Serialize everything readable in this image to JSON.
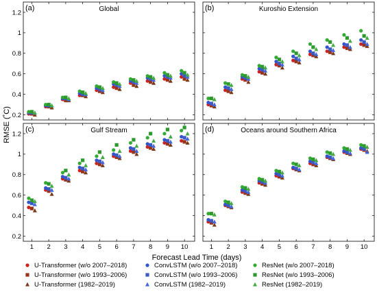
{
  "chart_data": [
    {
      "type": "scatter",
      "letter": "(a)",
      "title": "Global",
      "x": [
        1,
        2,
        3,
        4,
        5,
        6,
        7,
        8,
        9,
        10
      ],
      "xlim": [
        0.5,
        10.6
      ],
      "ylim": [
        0.15,
        1.3
      ],
      "yticks": [
        0.2,
        0.4,
        0.6,
        0.8,
        1.0,
        1.2
      ],
      "ytick_labels": [
        "0.2",
        "0.4",
        "0.6",
        "0.8",
        "1",
        "1.2"
      ],
      "series": [
        {
          "name": "U-Transformer (w/o 2007–2018)",
          "values": [
            0.21,
            0.28,
            0.35,
            0.39,
            0.44,
            0.47,
            0.51,
            0.53,
            0.55,
            0.57
          ]
        },
        {
          "name": "U-Transformer (w/o 1993–2006)",
          "values": [
            0.21,
            0.28,
            0.34,
            0.39,
            0.43,
            0.46,
            0.49,
            0.52,
            0.54,
            0.55
          ]
        },
        {
          "name": "U-Transformer (1982–2019)",
          "values": [
            0.2,
            0.27,
            0.34,
            0.38,
            0.42,
            0.45,
            0.48,
            0.51,
            0.53,
            0.54
          ]
        },
        {
          "name": "ConvLSTM (w/o 2007–2018)",
          "values": [
            0.22,
            0.29,
            0.36,
            0.41,
            0.46,
            0.5,
            0.53,
            0.56,
            0.58,
            0.6
          ]
        },
        {
          "name": "ConvLSTM (w/o 1993–2006)",
          "values": [
            0.22,
            0.29,
            0.36,
            0.4,
            0.45,
            0.49,
            0.52,
            0.55,
            0.57,
            0.58
          ]
        },
        {
          "name": "ConvLSTM (1982–2019)",
          "values": [
            0.22,
            0.29,
            0.35,
            0.4,
            0.44,
            0.48,
            0.51,
            0.54,
            0.56,
            0.57
          ]
        },
        {
          "name": "ResNet (w/o 2007–2018)",
          "values": [
            0.23,
            0.3,
            0.37,
            0.43,
            0.48,
            0.52,
            0.55,
            0.58,
            0.61,
            0.63
          ]
        },
        {
          "name": "ResNet (w/o 1993–2006)",
          "values": [
            0.23,
            0.3,
            0.37,
            0.42,
            0.47,
            0.51,
            0.54,
            0.57,
            0.59,
            0.61
          ]
        },
        {
          "name": "ResNet (1982–2019)",
          "values": [
            0.22,
            0.29,
            0.36,
            0.41,
            0.46,
            0.5,
            0.53,
            0.56,
            0.58,
            0.59
          ]
        }
      ]
    },
    {
      "type": "scatter",
      "letter": "(b)",
      "title": "Kuroshio Extension",
      "x": [
        1,
        2,
        3,
        4,
        5,
        6,
        7,
        8,
        9,
        10
      ],
      "xlim": [
        0.5,
        10.6
      ],
      "ylim": [
        0.15,
        1.3
      ],
      "yticks": [
        0.2,
        0.4,
        0.6,
        0.8,
        1.0,
        1.2
      ],
      "ytick_labels": [
        "0.2",
        "0.4",
        "0.6",
        "0.8",
        "1",
        "1.2"
      ],
      "series": [
        {
          "name": "U-Transformer (w/o 2007–2018)",
          "values": [
            0.3,
            0.44,
            0.55,
            0.62,
            0.69,
            0.73,
            0.79,
            0.82,
            0.86,
            0.89
          ]
        },
        {
          "name": "U-Transformer (w/o 1993–2006)",
          "values": [
            0.29,
            0.43,
            0.54,
            0.61,
            0.68,
            0.72,
            0.78,
            0.81,
            0.85,
            0.88
          ]
        },
        {
          "name": "U-Transformer (1982–2019)",
          "values": [
            0.28,
            0.42,
            0.52,
            0.6,
            0.66,
            0.71,
            0.77,
            0.8,
            0.84,
            0.87
          ]
        },
        {
          "name": "ConvLSTM (w/o 2007–2018)",
          "values": [
            0.32,
            0.47,
            0.57,
            0.65,
            0.72,
            0.77,
            0.82,
            0.86,
            0.89,
            0.93
          ]
        },
        {
          "name": "ConvLSTM (w/o 1993–2006)",
          "values": [
            0.31,
            0.46,
            0.56,
            0.64,
            0.7,
            0.75,
            0.8,
            0.84,
            0.88,
            0.91
          ]
        },
        {
          "name": "ConvLSTM (1982–2019)",
          "values": [
            0.3,
            0.45,
            0.55,
            0.63,
            0.69,
            0.74,
            0.79,
            0.83,
            0.86,
            0.89
          ]
        },
        {
          "name": "ResNet (w/o 2007–2018)",
          "values": [
            0.36,
            0.51,
            0.59,
            0.68,
            0.76,
            0.82,
            0.89,
            0.93,
            0.98,
            1.02
          ]
        },
        {
          "name": "ResNet (w/o 1993–2006)",
          "values": [
            0.36,
            0.5,
            0.58,
            0.67,
            0.74,
            0.8,
            0.86,
            0.91,
            0.95,
            0.97
          ]
        },
        {
          "name": "ResNet (1982–2019)",
          "values": [
            0.35,
            0.49,
            0.57,
            0.66,
            0.72,
            0.78,
            0.84,
            0.88,
            0.92,
            0.95
          ]
        }
      ]
    },
    {
      "type": "scatter",
      "letter": "(c)",
      "title": "Gulf Stream",
      "x": [
        1,
        2,
        3,
        4,
        5,
        6,
        7,
        8,
        9,
        10
      ],
      "xlim": [
        0.5,
        10.6
      ],
      "ylim": [
        0.15,
        1.3
      ],
      "yticks": [
        0.2,
        0.4,
        0.6,
        0.8,
        1.0,
        1.2
      ],
      "ytick_labels": [
        "0.2",
        "0.4",
        "0.6",
        "0.8",
        "1",
        "1.2"
      ],
      "series": [
        {
          "name": "U-Transformer (w/o 2007–2018)",
          "values": [
            0.48,
            0.65,
            0.76,
            0.84,
            0.91,
            0.98,
            1.03,
            1.07,
            1.11,
            1.13
          ]
        },
        {
          "name": "U-Transformer (w/o 1993–2006)",
          "values": [
            0.47,
            0.64,
            0.75,
            0.83,
            0.9,
            0.97,
            1.02,
            1.06,
            1.1,
            1.12
          ]
        },
        {
          "name": "U-Transformer (1982–2019)",
          "values": [
            0.45,
            0.61,
            0.74,
            0.82,
            0.89,
            0.96,
            1.0,
            1.05,
            1.09,
            1.11
          ]
        },
        {
          "name": "ConvLSTM (w/o 2007–2018)",
          "values": [
            0.53,
            0.67,
            0.78,
            0.87,
            0.94,
            1.0,
            1.06,
            1.1,
            1.14,
            1.17
          ]
        },
        {
          "name": "ConvLSTM (w/o 1993–2006)",
          "values": [
            0.52,
            0.66,
            0.77,
            0.86,
            0.93,
            0.99,
            1.05,
            1.09,
            1.13,
            1.16
          ]
        },
        {
          "name": "ConvLSTM (1982–2019)",
          "values": [
            0.51,
            0.65,
            0.76,
            0.85,
            0.92,
            0.98,
            1.03,
            1.08,
            1.12,
            1.15
          ]
        },
        {
          "name": "ResNet (w/o 2007–2018)",
          "values": [
            0.57,
            0.72,
            0.82,
            0.91,
            0.98,
            1.04,
            1.11,
            1.16,
            1.2,
            1.23
          ]
        },
        {
          "name": "ResNet (w/o 1993–2006)",
          "values": [
            0.55,
            0.71,
            0.84,
            0.94,
            1.02,
            1.09,
            1.14,
            1.2,
            1.24,
            1.26
          ]
        },
        {
          "name": "ResNet (1982–2019)",
          "values": [
            0.54,
            0.69,
            0.8,
            0.89,
            0.97,
            1.03,
            1.08,
            1.13,
            1.17,
            1.2
          ]
        }
      ]
    },
    {
      "type": "scatter",
      "letter": "(d)",
      "title": "Oceans around Southern Africa",
      "x": [
        1,
        2,
        3,
        4,
        5,
        6,
        7,
        8,
        9,
        10
      ],
      "xlim": [
        0.5,
        10.6
      ],
      "ylim": [
        0.15,
        1.3
      ],
      "yticks": [
        0.2,
        0.4,
        0.6,
        0.8,
        1.0,
        1.2
      ],
      "ytick_labels": [
        "0.2",
        "0.4",
        "0.6",
        "0.8",
        "1",
        "1.2"
      ],
      "series": [
        {
          "name": "U-Transformer (w/o 2007–2018)",
          "values": [
            0.34,
            0.5,
            0.63,
            0.72,
            0.79,
            0.86,
            0.91,
            0.97,
            1.02,
            1.05
          ]
        },
        {
          "name": "U-Transformer (w/o 1993–2006)",
          "values": [
            0.33,
            0.49,
            0.62,
            0.71,
            0.78,
            0.85,
            0.9,
            0.96,
            1.01,
            1.04
          ]
        },
        {
          "name": "U-Transformer (1982–2019)",
          "values": [
            0.31,
            0.48,
            0.61,
            0.7,
            0.77,
            0.84,
            0.89,
            0.95,
            1.0,
            1.03
          ]
        },
        {
          "name": "ConvLSTM (w/o 2007–2018)",
          "values": [
            0.36,
            0.51,
            0.65,
            0.74,
            0.81,
            0.87,
            0.93,
            0.98,
            1.03,
            1.06
          ]
        },
        {
          "name": "ConvLSTM (w/o 1993–2006)",
          "values": [
            0.35,
            0.5,
            0.64,
            0.73,
            0.8,
            0.86,
            0.92,
            0.97,
            1.02,
            1.05
          ]
        },
        {
          "name": "ConvLSTM (1982–2019)",
          "values": [
            0.34,
            0.49,
            0.63,
            0.72,
            0.79,
            0.85,
            0.91,
            0.96,
            1.01,
            1.02
          ]
        },
        {
          "name": "ResNet (w/o 2007–2018)",
          "values": [
            0.42,
            0.54,
            0.68,
            0.76,
            0.84,
            0.91,
            0.96,
            1.02,
            1.06,
            1.09
          ]
        },
        {
          "name": "ResNet (w/o 1993–2006)",
          "values": [
            0.42,
            0.53,
            0.67,
            0.75,
            0.83,
            0.9,
            0.95,
            1.01,
            1.05,
            1.08
          ]
        },
        {
          "name": "ResNet (1982–2019)",
          "values": [
            0.41,
            0.52,
            0.66,
            0.74,
            0.82,
            0.89,
            0.94,
            1.0,
            1.04,
            1.07
          ]
        }
      ]
    }
  ],
  "shared_axes": {
    "ylabel": "RMSE (˚C)",
    "xlabel": "Forecast Lead Time (days)",
    "xticks": [
      1,
      2,
      3,
      4,
      5,
      6,
      7,
      8,
      9,
      10
    ],
    "xtick_labels": [
      "1",
      "2",
      "3",
      "4",
      "5",
      "6",
      "7",
      "8",
      "9",
      "10"
    ]
  },
  "legend": {
    "placement": "bottom",
    "entries": [
      {
        "label": "U-Transformer (w/o 2007–2018)",
        "marker": "circle",
        "color": "#cc2222"
      },
      {
        "label": "U-Transformer (w/o 1993–2006)",
        "marker": "square",
        "color": "#99331a"
      },
      {
        "label": "U-Transformer (1982–2019)",
        "marker": "triangle",
        "color": "#7a3a1a"
      },
      {
        "label": "ConvLSTM (w/o 2007–2018)",
        "marker": "circle",
        "color": "#3355cc"
      },
      {
        "label": "ConvLSTM (w/o 1993–2006)",
        "marker": "square",
        "color": "#3b5bc4"
      },
      {
        "label": "ConvLSTM (1982–2019)",
        "marker": "triangle",
        "color": "#4466dd"
      },
      {
        "label": "ResNet (w/o 2007–2018)",
        "marker": "circle",
        "color": "#33aa33"
      },
      {
        "label": "ResNet (w/o 1993–2006)",
        "marker": "square",
        "color": "#2e9a2e"
      },
      {
        "label": "ResNet (1982–2019)",
        "marker": "triangle",
        "color": "#44aa44"
      }
    ]
  }
}
